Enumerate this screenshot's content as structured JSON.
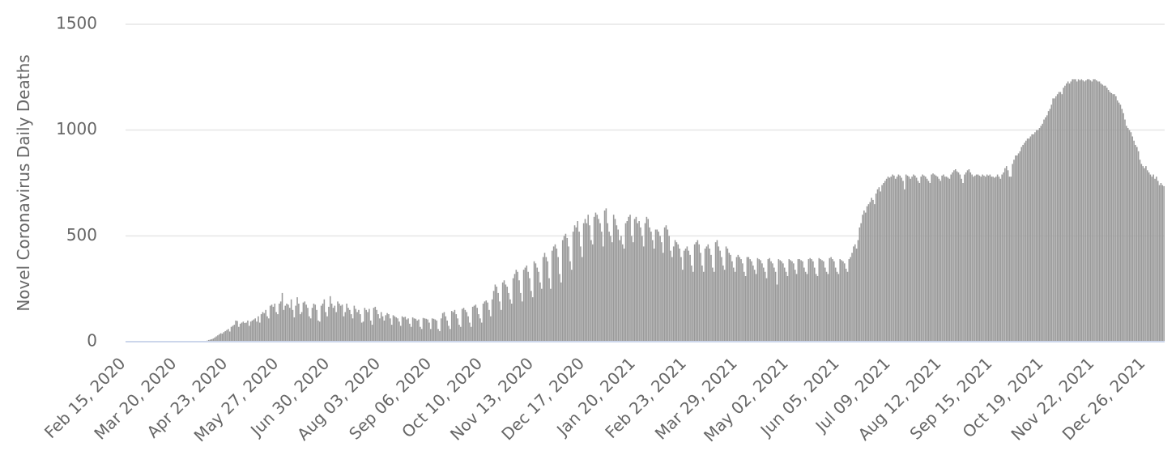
{
  "chart_data": {
    "type": "bar",
    "y_label": "Novel Coronavirus Daily Deaths",
    "color": "#9a9a9a",
    "ylim": [
      0,
      1500
    ],
    "yticks": [
      0,
      500,
      1000,
      1500
    ],
    "grid": true,
    "categories": [
      "Feb 15, 2020",
      null,
      null,
      null,
      null,
      null,
      null,
      null,
      null,
      null,
      null,
      null,
      null,
      null,
      null,
      null,
      null,
      null,
      null,
      null,
      null,
      null,
      null,
      null,
      null,
      null,
      null,
      null,
      null,
      null,
      null,
      null,
      null,
      null,
      "Mar 20, 2020",
      null,
      null,
      null,
      null,
      null,
      null,
      null,
      null,
      null,
      null,
      null,
      null,
      null,
      null,
      null,
      null,
      null,
      null,
      null,
      null,
      null,
      null,
      null,
      null,
      null,
      null,
      null,
      null,
      null,
      null,
      null,
      null,
      null,
      "Apr 23, 2020",
      null,
      null,
      null,
      null,
      null,
      null,
      null,
      null,
      null,
      null,
      null,
      null,
      null,
      null,
      null,
      null,
      null,
      null,
      null,
      null,
      null,
      null,
      null,
      null,
      null,
      null,
      null,
      null,
      null,
      null,
      null,
      null,
      null,
      "May 27, 2020",
      null,
      null,
      null,
      null,
      null,
      null,
      null,
      null,
      null,
      null,
      null,
      null,
      null,
      null,
      null,
      null,
      null,
      null,
      null,
      null,
      null,
      null,
      null,
      null,
      null,
      null,
      null,
      null,
      null,
      null,
      null,
      null,
      null,
      "Jun 30, 2020",
      null,
      null,
      null,
      null,
      null,
      null,
      null,
      null,
      null,
      null,
      null,
      null,
      null,
      null,
      null,
      null,
      null,
      null,
      null,
      null,
      null,
      null,
      null,
      null,
      null,
      null,
      null,
      null,
      null,
      null,
      null,
      null,
      null,
      "Aug 03, 2020",
      null,
      null,
      null,
      null,
      null,
      null,
      null,
      null,
      null,
      null,
      null,
      null,
      null,
      null,
      null,
      null,
      null,
      null,
      null,
      null,
      null,
      null,
      null,
      null,
      null,
      null,
      null,
      null,
      null,
      null,
      null,
      null,
      null,
      "Sep 06, 2020",
      null,
      null,
      null,
      null,
      null,
      null,
      null,
      null,
      null,
      null,
      null,
      null,
      null,
      null,
      null,
      null,
      null,
      null,
      null,
      null,
      null,
      null,
      null,
      null,
      null,
      null,
      null,
      null,
      null,
      null,
      null,
      null,
      null,
      "Oct 10, 2020",
      null,
      null,
      null,
      null,
      null,
      null,
      null,
      null,
      null,
      null,
      null,
      null,
      null,
      null,
      null,
      null,
      null,
      null,
      null,
      null,
      null,
      null,
      null,
      null,
      null,
      null,
      null,
      null,
      null,
      null,
      null,
      null,
      null,
      "Nov 13, 2020",
      null,
      null,
      null,
      null,
      null,
      null,
      null,
      null,
      null,
      null,
      null,
      null,
      null,
      null,
      null,
      null,
      null,
      null,
      null,
      null,
      null,
      null,
      null,
      null,
      null,
      null,
      null,
      null,
      null,
      null,
      null,
      null,
      null,
      "Dec 17, 2020",
      null,
      null,
      null,
      null,
      null,
      null,
      null,
      null,
      null,
      null,
      null,
      null,
      null,
      null,
      null,
      null,
      null,
      null,
      null,
      null,
      null,
      null,
      null,
      null,
      null,
      null,
      null,
      null,
      null,
      null,
      null,
      null,
      null,
      "Jan 20, 2021",
      null,
      null,
      null,
      null,
      null,
      null,
      null,
      null,
      null,
      null,
      null,
      null,
      null,
      null,
      null,
      null,
      null,
      null,
      null,
      null,
      null,
      null,
      null,
      null,
      null,
      null,
      null,
      null,
      null,
      null,
      null,
      null,
      null,
      "Feb 23, 2021",
      null,
      null,
      null,
      null,
      null,
      null,
      null,
      null,
      null,
      null,
      null,
      null,
      null,
      null,
      null,
      null,
      null,
      null,
      null,
      null,
      null,
      null,
      null,
      null,
      null,
      null,
      null,
      null,
      null,
      null,
      null,
      null,
      null,
      "Mar 29, 2021",
      null,
      null,
      null,
      null,
      null,
      null,
      null,
      null,
      null,
      null,
      null,
      null,
      null,
      null,
      null,
      null,
      null,
      null,
      null,
      null,
      null,
      null,
      null,
      null,
      null,
      null,
      null,
      null,
      null,
      null,
      null,
      null,
      null,
      "May 02, 2021",
      null,
      null,
      null,
      null,
      null,
      null,
      null,
      null,
      null,
      null,
      null,
      null,
      null,
      null,
      null,
      null,
      null,
      null,
      null,
      null,
      null,
      null,
      null,
      null,
      null,
      null,
      null,
      null,
      null,
      null,
      null,
      null,
      null,
      "Jun 05, 2021",
      null,
      null,
      null,
      null,
      null,
      null,
      null,
      null,
      null,
      null,
      null,
      null,
      null,
      null,
      null,
      null,
      null,
      null,
      null,
      null,
      null,
      null,
      null,
      null,
      null,
      null,
      null,
      null,
      null,
      null,
      null,
      null,
      null,
      "Jul 09, 2021",
      null,
      null,
      null,
      null,
      null,
      null,
      null,
      null,
      null,
      null,
      null,
      null,
      null,
      null,
      null,
      null,
      null,
      null,
      null,
      null,
      null,
      null,
      null,
      null,
      null,
      null,
      null,
      null,
      null,
      null,
      null,
      null,
      null,
      "Aug 12, 2021",
      null,
      null,
      null,
      null,
      null,
      null,
      null,
      null,
      null,
      null,
      null,
      null,
      null,
      null,
      null,
      null,
      null,
      null,
      null,
      null,
      null,
      null,
      null,
      null,
      null,
      null,
      null,
      null,
      null,
      null,
      null,
      null,
      null,
      "Sep 15, 2021",
      null,
      null,
      null,
      null,
      null,
      null,
      null,
      null,
      null,
      null,
      null,
      null,
      null,
      null,
      null,
      null,
      null,
      null,
      null,
      null,
      null,
      null,
      null,
      null,
      null,
      null,
      null,
      null,
      null,
      null,
      null,
      null,
      null,
      "Oct 19, 2021",
      null,
      null,
      null,
      null,
      null,
      null,
      null,
      null,
      null,
      null,
      null,
      null,
      null,
      null,
      null,
      null,
      null,
      null,
      null,
      null,
      null,
      null,
      null,
      null,
      null,
      null,
      null,
      null,
      null,
      null,
      null,
      null,
      null,
      "Nov 22, 2021",
      null,
      null,
      null,
      null,
      null,
      null,
      null,
      null,
      null,
      null,
      null,
      null,
      null,
      null,
      null,
      null,
      null,
      null,
      null,
      null,
      null,
      null,
      null,
      null,
      null,
      null,
      null,
      null,
      null,
      null,
      null,
      null,
      null,
      "Dec 26, 2021",
      null,
      null,
      null,
      null,
      null,
      null,
      null,
      null,
      null,
      null,
      null,
      null
    ],
    "values": [
      0,
      0,
      0,
      0,
      0,
      0,
      0,
      0,
      0,
      0,
      0,
      0,
      0,
      0,
      0,
      0,
      0,
      0,
      0,
      0,
      0,
      0,
      0,
      0,
      0,
      0,
      0,
      0,
      0,
      0,
      0,
      0,
      0,
      0,
      0,
      0,
      0,
      0,
      0,
      0,
      0,
      0,
      0,
      0,
      0,
      0,
      0,
      0,
      0,
      0,
      0,
      0,
      0,
      0,
      5,
      8,
      10,
      12,
      15,
      20,
      25,
      30,
      35,
      40,
      38,
      45,
      50,
      55,
      60,
      48,
      70,
      75,
      80,
      100,
      98,
      70,
      85,
      90,
      95,
      88,
      90,
      100,
      75,
      95,
      100,
      105,
      110,
      95,
      120,
      90,
      130,
      140,
      135,
      150,
      120,
      110,
      170,
      175,
      165,
      180,
      140,
      130,
      180,
      190,
      230,
      150,
      170,
      180,
      175,
      160,
      200,
      150,
      115,
      170,
      210,
      180,
      130,
      140,
      185,
      190,
      175,
      160,
      120,
      110,
      160,
      180,
      175,
      150,
      100,
      95,
      170,
      180,
      200,
      140,
      120,
      165,
      215,
      180,
      160,
      170,
      140,
      190,
      180,
      170,
      175,
      120,
      140,
      180,
      160,
      150,
      130,
      110,
      170,
      155,
      140,
      150,
      130,
      90,
      95,
      160,
      150,
      140,
      155,
      100,
      80,
      160,
      165,
      150,
      130,
      110,
      140,
      120,
      100,
      125,
      135,
      130,
      110,
      80,
      125,
      120,
      115,
      110,
      95,
      75,
      120,
      115,
      118,
      105,
      110,
      85,
      70,
      115,
      110,
      108,
      100,
      105,
      70,
      60,
      112,
      110,
      108,
      105,
      90,
      60,
      110,
      108,
      105,
      100,
      60,
      50,
      110,
      135,
      140,
      120,
      100,
      75,
      60,
      145,
      140,
      150,
      130,
      110,
      80,
      70,
      155,
      160,
      150,
      140,
      120,
      90,
      70,
      165,
      170,
      175,
      160,
      130,
      110,
      90,
      180,
      190,
      195,
      185,
      150,
      120,
      200,
      240,
      270,
      260,
      230,
      190,
      150,
      280,
      290,
      270,
      260,
      230,
      200,
      180,
      300,
      320,
      340,
      330,
      290,
      230,
      190,
      340,
      350,
      360,
      330,
      300,
      240,
      210,
      380,
      370,
      350,
      330,
      280,
      250,
      400,
      420,
      400,
      380,
      300,
      250,
      430,
      450,
      460,
      440,
      400,
      320,
      280,
      480,
      500,
      510,
      490,
      450,
      380,
      340,
      520,
      550,
      540,
      570,
      520,
      450,
      400,
      560,
      580,
      560,
      600,
      550,
      480,
      460,
      590,
      610,
      600,
      580,
      560,
      520,
      450,
      620,
      630,
      560,
      520,
      500,
      470,
      600,
      580,
      550,
      530,
      480,
      500,
      460,
      440,
      560,
      570,
      590,
      600,
      500,
      470,
      580,
      590,
      560,
      570,
      540,
      500,
      450,
      560,
      590,
      580,
      540,
      520,
      480,
      440,
      530,
      530,
      520,
      500,
      470,
      420,
      540,
      550,
      530,
      500,
      430,
      400,
      450,
      480,
      470,
      460,
      440,
      400,
      340,
      430,
      440,
      450,
      430,
      410,
      360,
      330,
      460,
      470,
      480,
      460,
      420,
      360,
      330,
      440,
      450,
      460,
      440,
      410,
      350,
      330,
      470,
      480,
      450,
      430,
      400,
      360,
      340,
      450,
      440,
      420,
      410,
      380,
      350,
      330,
      400,
      410,
      400,
      390,
      370,
      330,
      310,
      400,
      400,
      390,
      380,
      360,
      340,
      320,
      395,
      390,
      385,
      370,
      350,
      330,
      300,
      390,
      395,
      380,
      370,
      350,
      330,
      270,
      390,
      385,
      380,
      370,
      350,
      330,
      310,
      390,
      385,
      380,
      370,
      340,
      320,
      390,
      390,
      385,
      380,
      350,
      330,
      320,
      390,
      395,
      390,
      380,
      350,
      320,
      310,
      395,
      390,
      385,
      380,
      350,
      330,
      320,
      395,
      400,
      390,
      380,
      350,
      330,
      320,
      390,
      385,
      380,
      370,
      345,
      330,
      390,
      400,
      420,
      450,
      460,
      440,
      480,
      540,
      560,
      600,
      620,
      610,
      640,
      650,
      660,
      680,
      670,
      650,
      700,
      720,
      730,
      710,
      740,
      750,
      760,
      770,
      780,
      775,
      780,
      790,
      785,
      770,
      780,
      790,
      785,
      775,
      760,
      720,
      790,
      785,
      780,
      770,
      780,
      790,
      785,
      775,
      760,
      750,
      780,
      790,
      785,
      780,
      770,
      760,
      750,
      790,
      795,
      790,
      785,
      780,
      770,
      760,
      785,
      790,
      780,
      780,
      775,
      770,
      790,
      800,
      810,
      815,
      805,
      800,
      790,
      770,
      750,
      790,
      800,
      810,
      815,
      800,
      790,
      780,
      785,
      790,
      790,
      785,
      780,
      790,
      785,
      780,
      790,
      785,
      790,
      780,
      780,
      775,
      780,
      790,
      780,
      770,
      790,
      800,
      820,
      830,
      810,
      780,
      780,
      840,
      860,
      880,
      880,
      890,
      900,
      920,
      930,
      940,
      950,
      960,
      960,
      970,
      980,
      980,
      990,
      1000,
      1000,
      1010,
      1020,
      1030,
      1050,
      1060,
      1070,
      1090,
      1100,
      1120,
      1150,
      1150,
      1160,
      1170,
      1180,
      1180,
      1170,
      1200,
      1210,
      1220,
      1230,
      1220,
      1230,
      1240,
      1240,
      1240,
      1230,
      1240,
      1235,
      1240,
      1235,
      1230,
      1235,
      1240,
      1240,
      1235,
      1230,
      1240,
      1240,
      1235,
      1230,
      1230,
      1220,
      1215,
      1210,
      1210,
      1200,
      1190,
      1180,
      1175,
      1170,
      1170,
      1160,
      1140,
      1130,
      1120,
      1100,
      1080,
      1050,
      1020,
      1010,
      1000,
      990,
      970,
      950,
      930,
      920,
      900,
      860,
      840,
      830,
      820,
      830,
      810,
      800,
      790,
      780,
      790,
      770,
      780,
      760,
      740,
      750,
      740,
      735
    ]
  }
}
